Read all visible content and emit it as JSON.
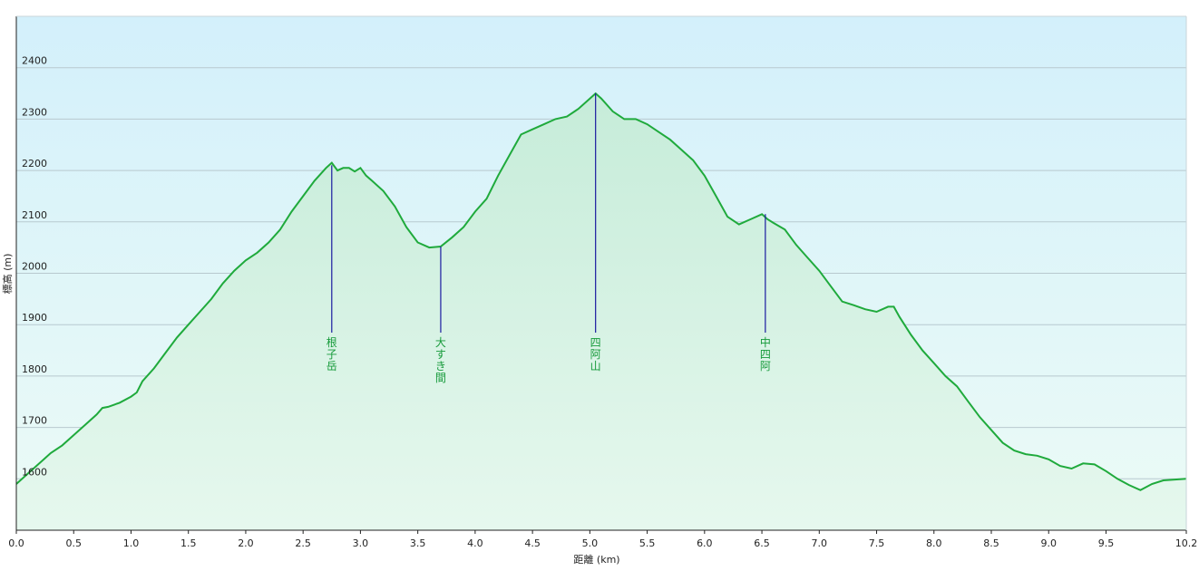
{
  "chart_data": {
    "type": "area",
    "title": "",
    "xlabel": "距離 (km)",
    "ylabel": "標高 (m)",
    "xlim": [
      0.0,
      10.2
    ],
    "ylim": [
      1500,
      2500
    ],
    "grid": true,
    "colors": {
      "line": "#1faa3c",
      "fill_top": "#c6ecd9",
      "fill_bottom": "#e6f8ee",
      "bg_top": "#d3f0fb",
      "bg_bottom": "#ecfbf6",
      "grid": "#b8c9cf",
      "marker": "#1a1aa0",
      "label": "#169a3a"
    },
    "x_ticks": [
      "0.0",
      "0.5",
      "1.0",
      "1.5",
      "2.0",
      "2.5",
      "3.0",
      "3.5",
      "4.0",
      "4.5",
      "5.0",
      "5.5",
      "6.0",
      "6.5",
      "7.0",
      "7.5",
      "8.0",
      "8.5",
      "9.0",
      "9.5",
      "10.2"
    ],
    "x_tick_values": [
      0.0,
      0.5,
      1.0,
      1.5,
      2.0,
      2.5,
      3.0,
      3.5,
      4.0,
      4.5,
      5.0,
      5.5,
      6.0,
      6.5,
      7.0,
      7.5,
      8.0,
      8.5,
      9.0,
      9.5,
      10.2
    ],
    "y_ticks": [
      "1600",
      "1700",
      "1800",
      "1900",
      "2000",
      "2100",
      "2200",
      "2300",
      "2400"
    ],
    "y_tick_values": [
      1600,
      1700,
      1800,
      1900,
      2000,
      2100,
      2200,
      2300,
      2400
    ],
    "series": [
      {
        "x": [
          0.0,
          0.1,
          0.2,
          0.3,
          0.4,
          0.5,
          0.6,
          0.7,
          0.75,
          0.8,
          0.9,
          1.0,
          1.05,
          1.1,
          1.2,
          1.3,
          1.4,
          1.5,
          1.6,
          1.7,
          1.8,
          1.9,
          2.0,
          2.1,
          2.2,
          2.3,
          2.4,
          2.5,
          2.6,
          2.7,
          2.75,
          2.8,
          2.85,
          2.9,
          2.95,
          3.0,
          3.05,
          3.1,
          3.2,
          3.3,
          3.4,
          3.5,
          3.6,
          3.7,
          3.8,
          3.9,
          4.0,
          4.1,
          4.2,
          4.3,
          4.4,
          4.5,
          4.6,
          4.7,
          4.8,
          4.9,
          5.0,
          5.05,
          5.1,
          5.2,
          5.3,
          5.4,
          5.5,
          5.6,
          5.7,
          5.8,
          5.9,
          6.0,
          6.1,
          6.2,
          6.3,
          6.4,
          6.5,
          6.55,
          6.6,
          6.7,
          6.8,
          6.9,
          7.0,
          7.1,
          7.2,
          7.3,
          7.4,
          7.5,
          7.6,
          7.65,
          7.7,
          7.8,
          7.9,
          8.0,
          8.1,
          8.2,
          8.3,
          8.4,
          8.5,
          8.6,
          8.7,
          8.8,
          8.9,
          9.0,
          9.1,
          9.2,
          9.3,
          9.4,
          9.5,
          9.6,
          9.7,
          9.8,
          9.9,
          10.0,
          10.2
        ],
        "values": [
          1590,
          1610,
          1630,
          1650,
          1665,
          1685,
          1705,
          1725,
          1738,
          1740,
          1748,
          1760,
          1768,
          1790,
          1815,
          1845,
          1875,
          1900,
          1925,
          1950,
          1980,
          2005,
          2025,
          2040,
          2060,
          2085,
          2120,
          2150,
          2180,
          2205,
          2215,
          2200,
          2205,
          2205,
          2198,
          2205,
          2190,
          2180,
          2160,
          2130,
          2090,
          2060,
          2050,
          2052,
          2070,
          2090,
          2120,
          2145,
          2190,
          2230,
          2270,
          2280,
          2290,
          2300,
          2305,
          2320,
          2340,
          2350,
          2340,
          2315,
          2300,
          2300,
          2290,
          2275,
          2260,
          2240,
          2220,
          2190,
          2150,
          2110,
          2095,
          2105,
          2115,
          2105,
          2098,
          2085,
          2055,
          2030,
          2005,
          1975,
          1945,
          1938,
          1930,
          1925,
          1935,
          1935,
          1915,
          1880,
          1850,
          1825,
          1800,
          1780,
          1750,
          1720,
          1695,
          1670,
          1655,
          1648,
          1645,
          1638,
          1625,
          1620,
          1630,
          1628,
          1615,
          1600,
          1588,
          1578,
          1590,
          1597,
          1600
        ]
      }
    ],
    "annotations": [
      {
        "x": 2.75,
        "y": 2210,
        "label": [
          "根",
          "子",
          "岳"
        ]
      },
      {
        "x": 3.7,
        "y": 2052,
        "label": [
          "大",
          "す",
          "き",
          "間"
        ]
      },
      {
        "x": 5.05,
        "y": 2350,
        "label": [
          "四",
          "阿",
          "山"
        ]
      },
      {
        "x": 6.53,
        "y": 2115,
        "label": [
          "中",
          "四",
          "阿"
        ]
      }
    ]
  }
}
